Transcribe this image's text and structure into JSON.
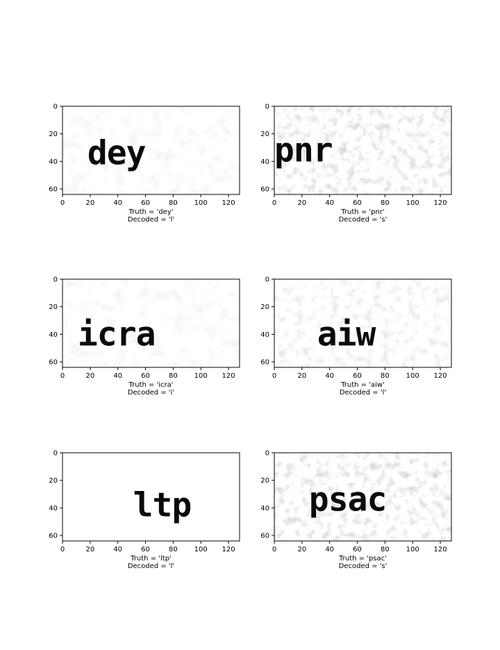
{
  "figure": {
    "rows": 3,
    "cols": 2
  },
  "chart_data": [
    {
      "type": "image",
      "image_text": "dey",
      "text_x": 18,
      "text_y": 42,
      "noise": "light",
      "xlim": [
        0,
        128
      ],
      "ylim": [
        0,
        64
      ],
      "xticks": [
        0,
        20,
        40,
        60,
        80,
        100,
        120
      ],
      "yticks": [
        0,
        20,
        40,
        60
      ],
      "caption": [
        "Truth = 'dey'",
        "Decoded = 'l'"
      ]
    },
    {
      "type": "image",
      "image_text": "pnr",
      "text_x": 0,
      "text_y": 40,
      "noise": "heavy",
      "xlim": [
        0,
        128
      ],
      "ylim": [
        0,
        64
      ],
      "xticks": [
        0,
        20,
        40,
        60,
        80,
        100,
        120
      ],
      "yticks": [
        0,
        20,
        40,
        60
      ],
      "caption": [
        "Truth = 'pnr'",
        "Decoded = 's'"
      ]
    },
    {
      "type": "image",
      "image_text": "icra",
      "text_x": 11,
      "text_y": 48,
      "noise": "light",
      "xlim": [
        0,
        128
      ],
      "ylim": [
        0,
        64
      ],
      "xticks": [
        0,
        20,
        40,
        60,
        80,
        100,
        120
      ],
      "yticks": [
        0,
        20,
        40,
        60
      ],
      "caption": [
        "Truth = 'icra'",
        "Decoded = 'i'"
      ]
    },
    {
      "type": "image",
      "image_text": "aiw",
      "text_x": 31,
      "text_y": 48,
      "noise": "medium",
      "xlim": [
        0,
        128
      ],
      "ylim": [
        0,
        64
      ],
      "xticks": [
        0,
        20,
        40,
        60,
        80,
        100,
        120
      ],
      "yticks": [
        0,
        20,
        40,
        60
      ],
      "caption": [
        "Truth = 'aiw'",
        "Decoded = 'l'"
      ]
    },
    {
      "type": "image",
      "image_text": "ltp",
      "text_x": 51,
      "text_y": 46,
      "noise": "none",
      "xlim": [
        0,
        128
      ],
      "ylim": [
        0,
        64
      ],
      "xticks": [
        0,
        20,
        40,
        60,
        80,
        100,
        120
      ],
      "yticks": [
        0,
        20,
        40,
        60
      ],
      "caption": [
        "Truth = 'ltp'",
        "Decoded = 'l'"
      ]
    },
    {
      "type": "image",
      "image_text": "psac",
      "text_x": 25,
      "text_y": 42,
      "noise": "heavy",
      "xlim": [
        0,
        128
      ],
      "ylim": [
        0,
        64
      ],
      "xticks": [
        0,
        20,
        40,
        60,
        80,
        100,
        120
      ],
      "yticks": [
        0,
        20,
        40,
        60
      ],
      "caption": [
        "Truth = 'psac'",
        "Decoded = 's'"
      ]
    }
  ]
}
